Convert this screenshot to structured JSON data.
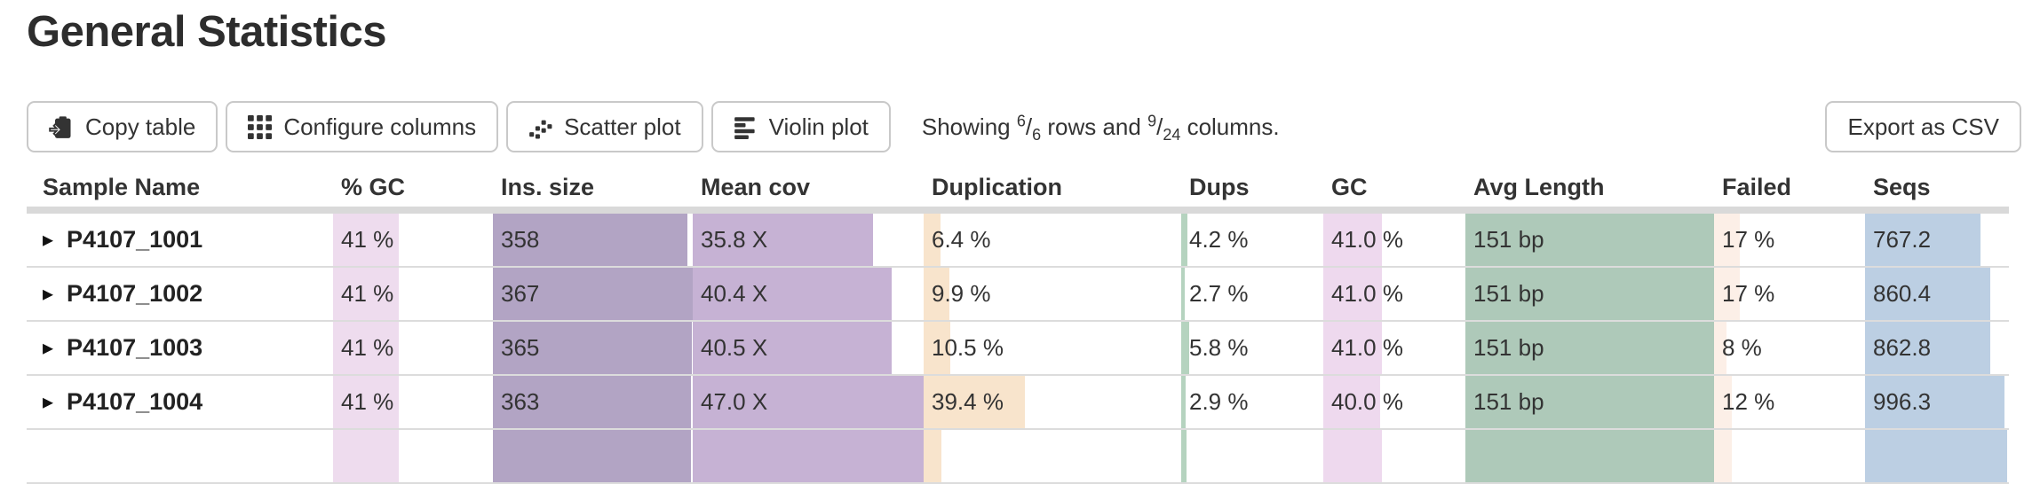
{
  "page": {
    "title": "General Statistics"
  },
  "toolbar": {
    "buttons": [
      {
        "label": "Copy table",
        "icon": "clipboard-icon"
      },
      {
        "label": "Configure columns",
        "icon": "grid-icon"
      },
      {
        "label": "Scatter plot",
        "icon": "scatter-plot-icon"
      },
      {
        "label": "Violin plot",
        "icon": "violin-plot-icon"
      }
    ],
    "showing": {
      "prefix": "Showing",
      "rows_shown": "6",
      "rows_total": "6",
      "middle": "rows and",
      "cols_shown": "9",
      "cols_total": "24",
      "suffix": "columns."
    },
    "export_label": "Export as CSV"
  },
  "table": {
    "header_band_color": "#d9d9d9",
    "columns": [
      {
        "label": "Sample Name",
        "color": null
      },
      {
        "label": "% GC",
        "color": "#eedcee"
      },
      {
        "label": "Ins. size",
        "color": "#b2a4c4"
      },
      {
        "label": "Mean cov",
        "color": "#c6b2d4"
      },
      {
        "label": "Duplication",
        "color": "#f8e4cc"
      },
      {
        "label": "Dups",
        "color": "#b5d3bf"
      },
      {
        "label": "GC",
        "color": "#eed9ee"
      },
      {
        "label": "Avg Length",
        "color": "#aec9b9"
      },
      {
        "label": "Failed",
        "color": "#fcefe7"
      },
      {
        "label": "Seqs",
        "color": "#bccfe3"
      }
    ],
    "rows": [
      {
        "name": "P4107_1001",
        "partial": false,
        "cells": [
          {
            "text": "41 %",
            "bar": 41
          },
          {
            "text": "358",
            "bar": 97.5
          },
          {
            "text": "35.8 X",
            "bar": 78
          },
          {
            "text": "6.4 %",
            "bar": 6.4
          },
          {
            "text": "4.2 %",
            "bar": 4.2
          },
          {
            "text": "41.0 %",
            "bar": 41
          },
          {
            "text": "151 bp",
            "bar": 100
          },
          {
            "text": "17 %",
            "bar": 17
          },
          {
            "text": "767.2",
            "bar": 80
          }
        ]
      },
      {
        "name": "P4107_1002",
        "partial": false,
        "cells": [
          {
            "text": "41 %",
            "bar": 41
          },
          {
            "text": "367",
            "bar": 100
          },
          {
            "text": "40.4 X",
            "bar": 86
          },
          {
            "text": "9.9 %",
            "bar": 9.9
          },
          {
            "text": "2.7 %",
            "bar": 2.7
          },
          {
            "text": "41.0 %",
            "bar": 41
          },
          {
            "text": "151 bp",
            "bar": 100
          },
          {
            "text": "17 %",
            "bar": 17
          },
          {
            "text": "860.4",
            "bar": 87
          }
        ]
      },
      {
        "name": "P4107_1003",
        "partial": false,
        "cells": [
          {
            "text": "41 %",
            "bar": 41
          },
          {
            "text": "365",
            "bar": 99.5
          },
          {
            "text": "40.5 X",
            "bar": 86.2
          },
          {
            "text": "10.5 %",
            "bar": 10.5
          },
          {
            "text": "5.8 %",
            "bar": 5.8
          },
          {
            "text": "41.0 %",
            "bar": 41
          },
          {
            "text": "151 bp",
            "bar": 100
          },
          {
            "text": "8 %",
            "bar": 8
          },
          {
            "text": "862.8",
            "bar": 87.2
          }
        ]
      },
      {
        "name": "P4107_1004",
        "partial": false,
        "cells": [
          {
            "text": "41 %",
            "bar": 41
          },
          {
            "text": "363",
            "bar": 98.9
          },
          {
            "text": "47.0 X",
            "bar": 100
          },
          {
            "text": "39.4 %",
            "bar": 39.4
          },
          {
            "text": "2.9 %",
            "bar": 2.9
          },
          {
            "text": "40.0 %",
            "bar": 40
          },
          {
            "text": "151 bp",
            "bar": 100
          },
          {
            "text": "12 %",
            "bar": 12
          },
          {
            "text": "996.3",
            "bar": 97
          }
        ]
      },
      {
        "name": "",
        "partial": true,
        "cells": [
          {
            "text": "",
            "bar": 41
          },
          {
            "text": "",
            "bar": 99
          },
          {
            "text": "",
            "bar": 100
          },
          {
            "text": "",
            "bar": 7
          },
          {
            "text": "",
            "bar": 4
          },
          {
            "text": "",
            "bar": 41
          },
          {
            "text": "",
            "bar": 100
          },
          {
            "text": "",
            "bar": 12
          },
          {
            "text": "",
            "bar": 99
          }
        ]
      }
    ]
  }
}
